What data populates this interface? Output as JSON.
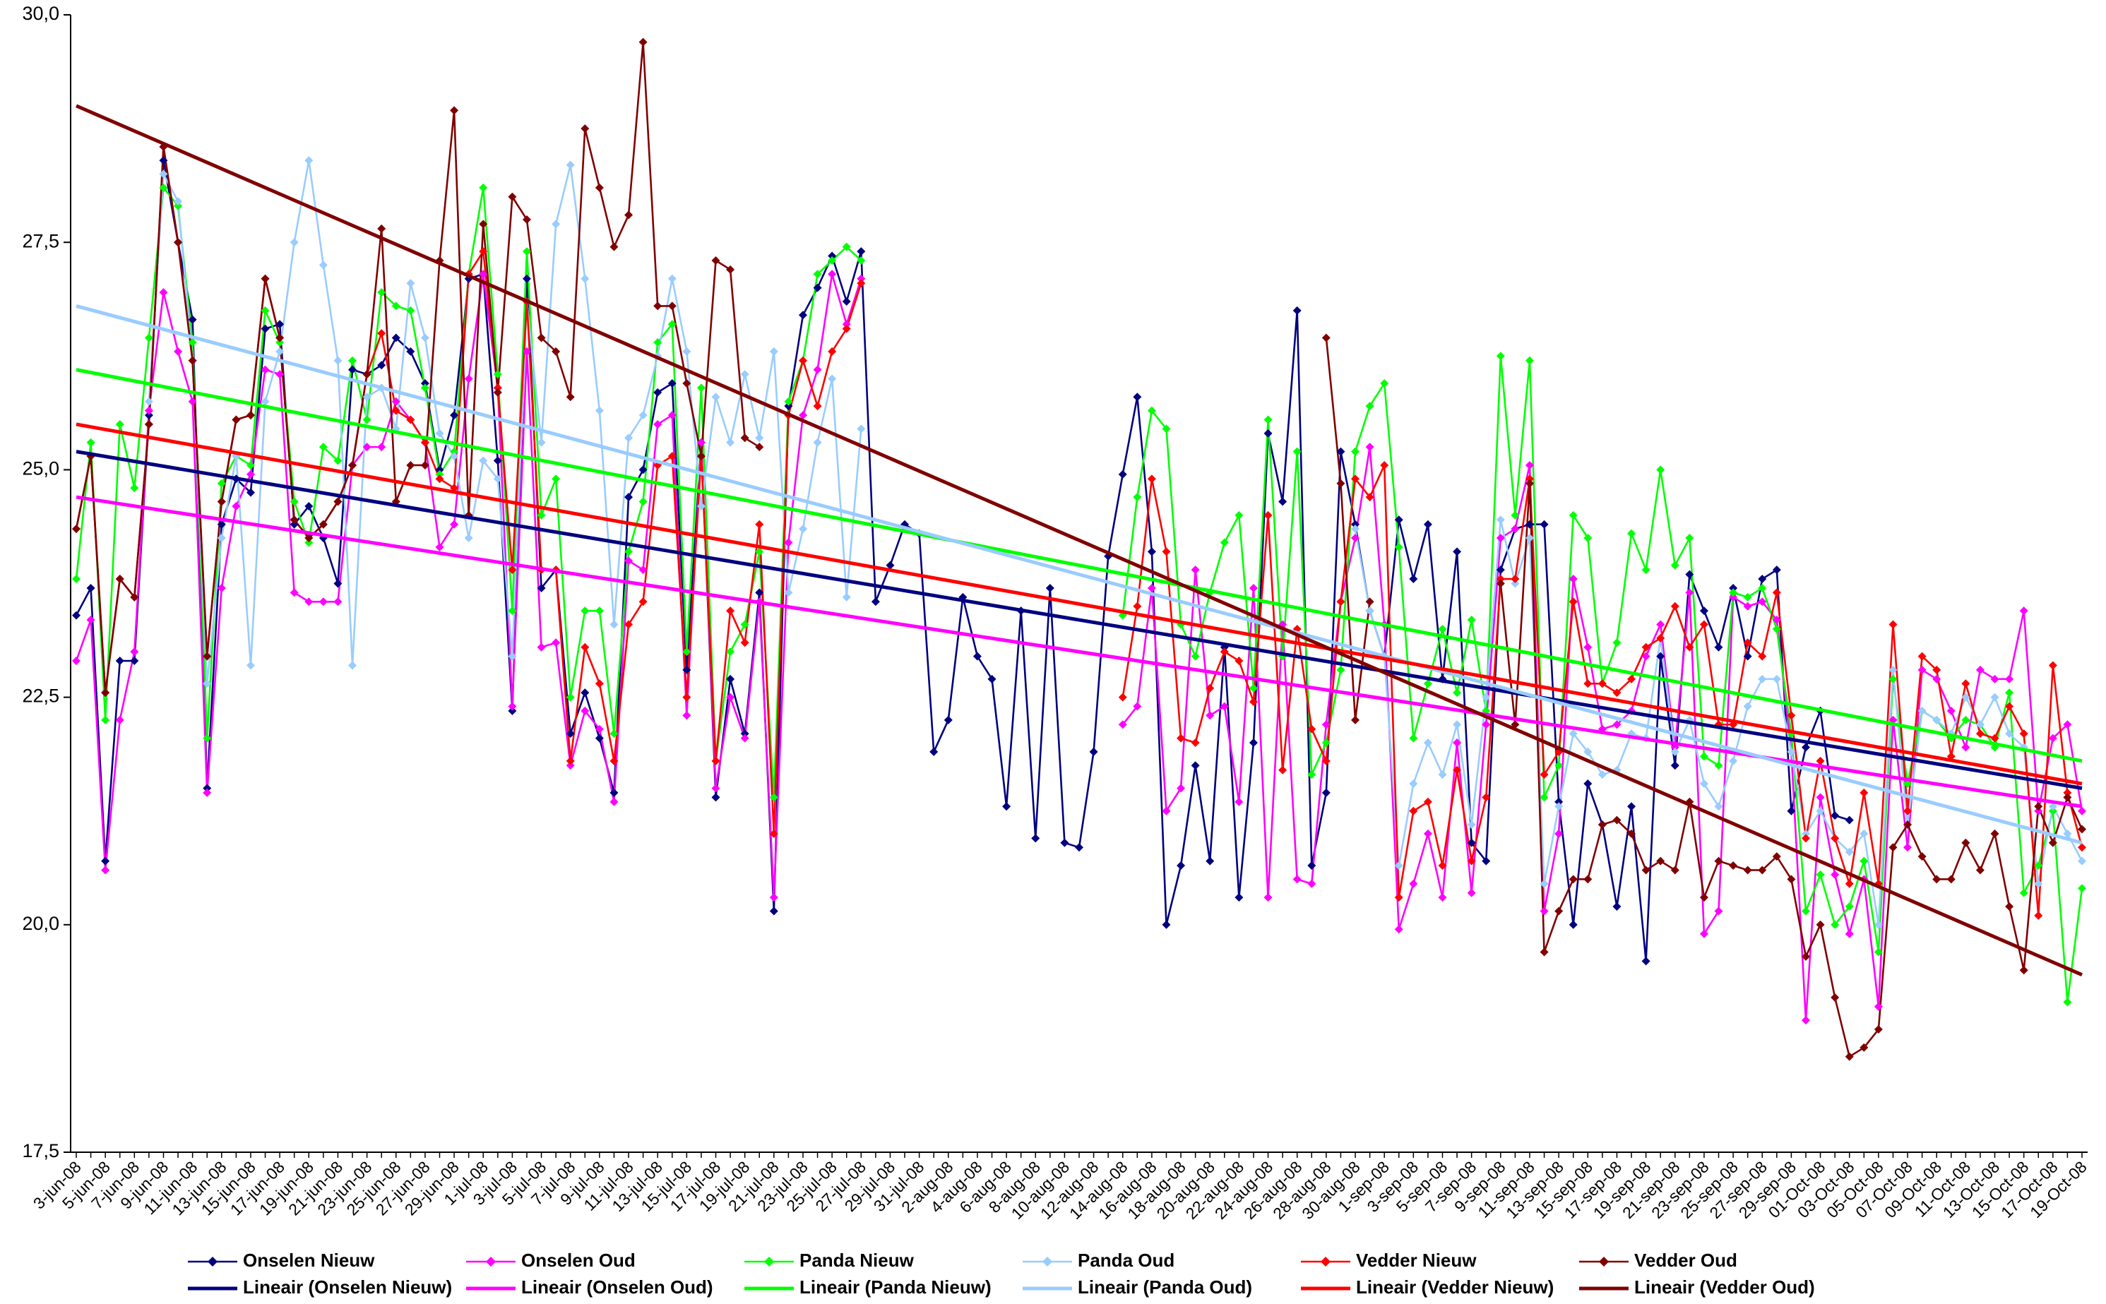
{
  "chart_data": {
    "type": "line",
    "categories": [
      "3-jun-08",
      null,
      "5-jun-08",
      null,
      "7-jun-08",
      null,
      "9-jun-08",
      null,
      "11-jun-08",
      null,
      "13-jun-08",
      null,
      "15-jun-08",
      null,
      "17-jun-08",
      null,
      "19-jun-08",
      null,
      "21-jun-08",
      null,
      "23-jun-08",
      null,
      "25-jun-08",
      null,
      "27-jun-08",
      null,
      "29-jun-08",
      null,
      "1-jul-08",
      null,
      "3-jul-08",
      null,
      "5-jul-08",
      null,
      "7-jul-08",
      null,
      "9-jul-08",
      null,
      "11-jul-08",
      null,
      "13-jul-08",
      null,
      "15-jul-08",
      null,
      "17-jul-08",
      null,
      "19-jul-08",
      null,
      "21-jul-08",
      null,
      "23-jul-08",
      null,
      "25-jul-08",
      null,
      "27-jul-08",
      null,
      "29-jul-08",
      null,
      "31-jul-08",
      null,
      "2-aug-08",
      null,
      "4-aug-08",
      null,
      "6-aug-08",
      null,
      "8-aug-08",
      null,
      "10-aug-08",
      null,
      "12-aug-08",
      null,
      "14-aug-08",
      null,
      "16-aug-08",
      null,
      "18-aug-08",
      null,
      "20-aug-08",
      null,
      "22-aug-08",
      null,
      "24-aug-08",
      null,
      "26-aug-08",
      null,
      "28-aug-08",
      null,
      "30-aug-08",
      null,
      "1-sep-08",
      null,
      "3-sep-08",
      null,
      "5-sep-08",
      null,
      "7-sep-08",
      null,
      "9-sep-08",
      null,
      "11-sep-08",
      null,
      "13-sep-08",
      null,
      "15-sep-08",
      null,
      "17-sep-08",
      null,
      "19-sep-08",
      null,
      "21-sep-08",
      null,
      "23-sep-08",
      null,
      "25-sep-08",
      null,
      "27-sep-08",
      null,
      "29-sep-08",
      null,
      "01-Oct-08",
      null,
      "03-Oct-08",
      null,
      "05-Oct-08",
      null,
      "07-Oct-08",
      null,
      "09-Oct-08",
      null,
      "11-Oct-08",
      null,
      "13-Oct-08",
      null,
      "15-Oct-08",
      null,
      "17-Oct-08",
      null,
      "19-Oct-08"
    ],
    "ylim": [
      17.5,
      30
    ],
    "yticks": [
      {
        "value": 17.5,
        "label": "17,5"
      },
      {
        "value": 20,
        "label": "20,0"
      },
      {
        "value": 22.5,
        "label": "22,5"
      },
      {
        "value": 25,
        "label": "25,0"
      },
      {
        "value": 27.5,
        "label": "27,5"
      },
      {
        "value": 30,
        "label": "30,0"
      }
    ],
    "marker": "diamond",
    "legend": "bottom",
    "series": [
      {
        "name": "Onselen Nieuw",
        "color": "#000080",
        "values": [
          23.4,
          23.7,
          20.7,
          22.9,
          22.9,
          25.6,
          28.4,
          27.5,
          26.65,
          21.5,
          24.4,
          24.9,
          24.75,
          26.55,
          26.6,
          24.4,
          24.6,
          24.25,
          23.75,
          26.1,
          26.05,
          26.15,
          26.45,
          26.3,
          25.95,
          25.0,
          25.6,
          27.1,
          27.15,
          25.1,
          22.35,
          27.1,
          23.7,
          23.9,
          22.1,
          22.55,
          22.05,
          21.45,
          24.7,
          25.0,
          25.85,
          25.95,
          22.8,
          25.3,
          21.4,
          22.7,
          22.1,
          23.65,
          20.15,
          25.7,
          26.7,
          27.0,
          27.35,
          26.85,
          27.4,
          23.55,
          23.95,
          24.4,
          24.3,
          21.9,
          22.25,
          23.6,
          22.95,
          22.7,
          21.3,
          23.45,
          20.95,
          23.7,
          20.9,
          20.85,
          21.9,
          24.05,
          24.95,
          25.8,
          24.1,
          20.0,
          20.65,
          21.75,
          20.7,
          23.05,
          20.3,
          22.0,
          25.4,
          24.65,
          26.75,
          20.65,
          21.45,
          25.2,
          24.4,
          23.45,
          22.95,
          24.45,
          23.8,
          24.4,
          22.7,
          24.1,
          20.9,
          20.7,
          23.9,
          24.35,
          24.4,
          24.4,
          21.35,
          20.0,
          21.55,
          21.1,
          20.2,
          21.3,
          19.6,
          22.95,
          21.75,
          23.85,
          23.45,
          23.05,
          23.7,
          22.95,
          23.8,
          23.9,
          21.25,
          21.95,
          22.35,
          21.2,
          21.15,
          null,
          null,
          null,
          null,
          null,
          null,
          null,
          null,
          null,
          null,
          null,
          null,
          null,
          null,
          null,
          null
        ]
      },
      {
        "name": "Onselen Oud",
        "color": "#ff00ff",
        "values": [
          22.9,
          23.35,
          20.6,
          22.25,
          23.0,
          25.65,
          26.95,
          26.3,
          25.75,
          21.45,
          23.7,
          24.6,
          24.95,
          26.1,
          26.05,
          23.65,
          23.55,
          23.55,
          23.55,
          25.05,
          25.25,
          25.25,
          25.75,
          25.55,
          25.3,
          24.15,
          24.4,
          26.0,
          27.15,
          25.9,
          22.4,
          26.3,
          23.05,
          23.1,
          21.75,
          22.35,
          22.15,
          21.35,
          24.0,
          23.9,
          25.5,
          25.6,
          22.3,
          25.3,
          21.5,
          22.5,
          22.05,
          23.55,
          20.3,
          24.2,
          25.6,
          26.1,
          27.15,
          26.6,
          27.1,
          null,
          null,
          null,
          null,
          null,
          null,
          null,
          null,
          null,
          null,
          null,
          null,
          null,
          null,
          null,
          null,
          null,
          22.2,
          22.4,
          23.7,
          21.25,
          21.5,
          23.9,
          22.3,
          22.4,
          21.35,
          23.7,
          20.3,
          23.3,
          20.5,
          20.45,
          22.2,
          23.55,
          24.25,
          25.25,
          23.3,
          19.95,
          20.45,
          21.0,
          20.3,
          22.0,
          20.35,
          22.2,
          24.25,
          24.35,
          25.05,
          20.15,
          21.0,
          23.8,
          23.05,
          22.15,
          22.2,
          22.35,
          22.95,
          23.3,
          21.95,
          23.65,
          19.9,
          20.15,
          23.6,
          23.5,
          23.55,
          23.35,
          21.9,
          18.95,
          21.4,
          20.55,
          19.9,
          20.5,
          19.1,
          22.25,
          20.85,
          22.8,
          22.7,
          22.35,
          21.95,
          22.8,
          22.7,
          22.7,
          23.45,
          21.25,
          22.05,
          22.2,
          21.25
        ]
      },
      {
        "name": "Panda Nieuw",
        "color": "#00ff00",
        "values": [
          23.8,
          25.3,
          22.25,
          25.5,
          24.8,
          26.45,
          28.1,
          27.9,
          26.4,
          22.05,
          24.85,
          25.15,
          25.05,
          26.75,
          26.4,
          24.65,
          24.2,
          25.25,
          25.1,
          26.2,
          25.55,
          26.95,
          26.8,
          26.75,
          25.9,
          24.95,
          25.2,
          27.15,
          28.1,
          26.05,
          23.45,
          27.4,
          24.5,
          24.9,
          22.5,
          23.45,
          23.45,
          22.1,
          24.1,
          24.65,
          26.4,
          26.6,
          23.0,
          25.9,
          21.8,
          23.0,
          23.3,
          24.1,
          21.4,
          25.75,
          26.2,
          27.15,
          27.3,
          27.45,
          27.3,
          null,
          null,
          null,
          null,
          null,
          null,
          null,
          null,
          null,
          null,
          null,
          null,
          null,
          null,
          null,
          null,
          null,
          23.4,
          24.7,
          25.65,
          25.45,
          23.3,
          22.95,
          23.65,
          24.2,
          24.5,
          22.6,
          25.55,
          22.95,
          25.2,
          21.65,
          22.0,
          22.8,
          25.2,
          25.7,
          25.95,
          24.15,
          22.05,
          22.65,
          23.25,
          22.55,
          23.35,
          22.35,
          26.25,
          24.5,
          26.2,
          21.4,
          21.75,
          24.5,
          24.25,
          22.65,
          23.1,
          24.3,
          23.9,
          25.0,
          23.95,
          24.25,
          21.85,
          21.75,
          23.65,
          23.6,
          23.7,
          23.25,
          22.1,
          20.15,
          20.55,
          20.0,
          20.2,
          20.7,
          19.7,
          22.7,
          21.55,
          22.35,
          22.25,
          22.05,
          22.25,
          22.2,
          21.95,
          22.55,
          20.35,
          20.65,
          21.25,
          19.15,
          20.4
        ]
      },
      {
        "name": "Panda Oud",
        "color": "#99ccff",
        "values": [
          null,
          null,
          null,
          null,
          null,
          25.75,
          28.25,
          27.95,
          26.2,
          22.65,
          24.25,
          25.15,
          22.85,
          25.75,
          26.3,
          27.5,
          28.4,
          27.25,
          26.2,
          22.85,
          25.8,
          25.9,
          25.45,
          27.05,
          26.45,
          25.4,
          25.15,
          24.25,
          25.1,
          24.9,
          22.95,
          26.85,
          25.3,
          27.7,
          28.35,
          27.1,
          25.65,
          23.3,
          25.35,
          25.6,
          26.25,
          27.1,
          26.3,
          24.6,
          25.8,
          25.3,
          26.05,
          25.35,
          26.3,
          23.65,
          24.35,
          25.3,
          26.0,
          23.6,
          25.45,
          null,
          null,
          null,
          null,
          null,
          null,
          null,
          null,
          null,
          null,
          null,
          null,
          null,
          null,
          null,
          null,
          null,
          null,
          null,
          null,
          null,
          null,
          null,
          null,
          null,
          null,
          null,
          null,
          null,
          null,
          null,
          null,
          null,
          24.35,
          23.45,
          22.95,
          20.65,
          21.55,
          22.0,
          21.65,
          22.2,
          21.1,
          22.5,
          24.45,
          23.75,
          24.25,
          20.45,
          21.3,
          22.1,
          21.9,
          21.65,
          21.7,
          22.1,
          22.05,
          23.15,
          21.9,
          22.25,
          21.55,
          21.3,
          21.8,
          22.4,
          22.7,
          22.7,
          21.9,
          21.0,
          21.25,
          20.95,
          20.8,
          21.0,
          20.0,
          22.8,
          21.1,
          22.35,
          22.25,
          22.1,
          22.5,
          22.2,
          22.5,
          22.1,
          21.95,
          20.45,
          21.3,
          21.0,
          20.7
        ]
      },
      {
        "name": "Vedder Nieuw",
        "color": "#ff0000",
        "values": [
          24.35,
          25.15,
          22.55,
          23.8,
          23.6,
          25.5,
          28.55,
          27.5,
          26.2,
          22.95,
          24.65,
          25.55,
          25.6,
          27.1,
          26.45,
          24.45,
          24.25,
          24.4,
          24.65,
          25.05,
          26.05,
          26.5,
          25.65,
          25.55,
          25.3,
          24.9,
          24.8,
          27.15,
          27.4,
          25.9,
          23.9,
          26.85,
          23.9,
          23.9,
          21.8,
          23.05,
          22.65,
          21.8,
          23.3,
          23.55,
          25.05,
          25.15,
          22.5,
          25.15,
          21.8,
          23.45,
          23.1,
          24.4,
          21.0,
          25.6,
          26.2,
          25.7,
          26.3,
          26.55,
          27.05,
          null,
          null,
          null,
          null,
          null,
          null,
          null,
          null,
          null,
          null,
          null,
          null,
          null,
          null,
          null,
          null,
          null,
          22.5,
          23.5,
          24.9,
          24.1,
          22.05,
          22.0,
          22.6,
          23.0,
          22.9,
          22.45,
          24.5,
          21.7,
          23.25,
          22.15,
          21.8,
          23.55,
          24.9,
          24.7,
          25.05,
          20.3,
          21.25,
          21.35,
          20.65,
          21.7,
          20.7,
          21.4,
          23.8,
          23.8,
          24.9,
          21.65,
          21.9,
          23.55,
          22.65,
          22.65,
          22.55,
          22.7,
          23.05,
          23.15,
          23.5,
          23.05,
          23.3,
          22.2,
          22.2,
          23.1,
          22.95,
          23.65,
          22.3,
          20.95,
          21.8,
          20.95,
          20.45,
          21.45,
          20.45,
          23.3,
          21.25,
          22.95,
          22.8,
          21.85,
          22.65,
          22.1,
          22.05,
          22.4,
          22.1,
          20.1,
          22.85,
          21.45,
          20.85
        ]
      },
      {
        "name": "Vedder Oud",
        "color": "#800000",
        "values": [
          24.35,
          25.15,
          22.55,
          23.8,
          23.6,
          25.5,
          28.55,
          27.5,
          26.2,
          22.95,
          24.65,
          25.55,
          25.6,
          27.1,
          26.45,
          24.45,
          24.25,
          24.4,
          24.65,
          25.05,
          26.05,
          27.65,
          24.65,
          25.05,
          25.05,
          27.3,
          28.95,
          24.5,
          27.7,
          25.85,
          28.0,
          27.75,
          26.45,
          26.3,
          25.8,
          28.75,
          28.1,
          27.45,
          27.8,
          29.7,
          26.8,
          26.8,
          25.95,
          25.15,
          27.3,
          27.2,
          25.35,
          25.25,
          null,
          null,
          null,
          null,
          null,
          null,
          null,
          null,
          null,
          null,
          null,
          null,
          null,
          null,
          null,
          null,
          null,
          null,
          null,
          null,
          null,
          null,
          null,
          null,
          null,
          null,
          null,
          null,
          null,
          null,
          null,
          null,
          null,
          null,
          null,
          null,
          null,
          null,
          26.45,
          24.85,
          22.25,
          23.55,
          null,
          null,
          null,
          null,
          null,
          null,
          null,
          null,
          23.75,
          22.2,
          24.85,
          19.7,
          20.15,
          20.5,
          20.5,
          21.1,
          21.15,
          21.0,
          20.6,
          20.7,
          20.6,
          21.35,
          20.3,
          20.7,
          20.65,
          20.6,
          20.6,
          20.75,
          20.5,
          19.65,
          20.0,
          19.2,
          18.55,
          18.65,
          18.85,
          20.85,
          21.1,
          20.75,
          20.5,
          20.5,
          20.9,
          20.6,
          21.0,
          20.2,
          19.5,
          21.3,
          20.9,
          21.4,
          21.05
        ]
      }
    ],
    "trendlines": [
      {
        "name": "Lineair (Onselen Nieuw)",
        "color": "#000080",
        "values": [
          25.2,
          21.5
        ]
      },
      {
        "name": "Lineair (Onselen Oud)",
        "color": "#ff00ff",
        "values": [
          24.7,
          21.3
        ]
      },
      {
        "name": "Lineair (Panda Nieuw)",
        "color": "#00ff00",
        "values": [
          26.1,
          21.8
        ]
      },
      {
        "name": "Lineair (Panda Oud)",
        "color": "#99ccff",
        "values": [
          26.8,
          20.9
        ]
      },
      {
        "name": "Lineair (Vedder Nieuw)",
        "color": "#ff0000",
        "values": [
          25.5,
          21.55
        ]
      },
      {
        "name": "Lineair (Vedder Oud)",
        "color": "#800000",
        "values": [
          29.0,
          19.45
        ]
      }
    ]
  }
}
